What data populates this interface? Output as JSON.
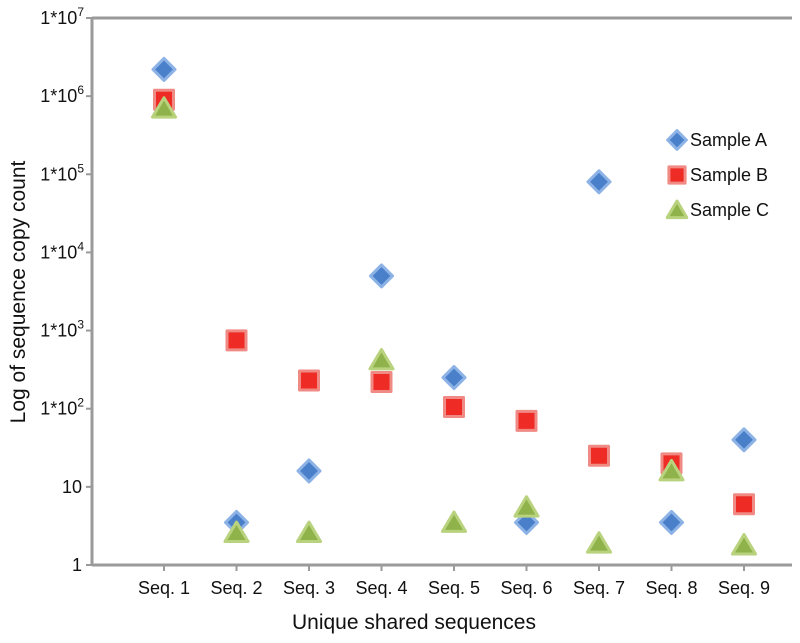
{
  "chart_data": {
    "type": "scatter",
    "title": "",
    "xlabel": "Unique shared sequences",
    "ylabel": "Log of sequence copy count",
    "y_scale": "log",
    "ylim": [
      1,
      10000000
    ],
    "y_ticks": [
      {
        "value": 1,
        "base": "1",
        "exp": ""
      },
      {
        "value": 10,
        "base": "10",
        "exp": ""
      },
      {
        "value": 100,
        "base": "1*10",
        "exp": "2"
      },
      {
        "value": 1000,
        "base": "1*10",
        "exp": "3"
      },
      {
        "value": 10000,
        "base": "1*10",
        "exp": "4"
      },
      {
        "value": 100000,
        "base": "1*10",
        "exp": "5"
      },
      {
        "value": 1000000,
        "base": "1*10",
        "exp": "6"
      },
      {
        "value": 10000000,
        "base": "1*10",
        "exp": "7"
      }
    ],
    "categories": [
      "Seq. 1",
      "Seq. 2",
      "Seq. 3",
      "Seq. 4",
      "Seq. 5",
      "Seq. 6",
      "Seq. 7",
      "Seq. 8",
      "Seq. 9"
    ],
    "grid": false,
    "legend_position": "top-right",
    "series": [
      {
        "name": "Sample A",
        "marker": "diamond",
        "color": "#4a7fc9",
        "edge": "#8cb2e6",
        "values": [
          2200000,
          3.5,
          16,
          5000,
          250,
          3.5,
          80000,
          3.5,
          40
        ]
      },
      {
        "name": "Sample B",
        "marker": "square",
        "color": "#ee2b24",
        "edge": "#f08a84",
        "values": [
          900000,
          750,
          230,
          220,
          105,
          70,
          25,
          20,
          6
        ]
      },
      {
        "name": "Sample C",
        "marker": "triangle",
        "color": "#8fb34a",
        "edge": "#b9d27e",
        "values": [
          700000,
          2.6,
          2.6,
          420,
          3.5,
          5.5,
          1.9,
          16,
          1.8
        ]
      }
    ]
  }
}
